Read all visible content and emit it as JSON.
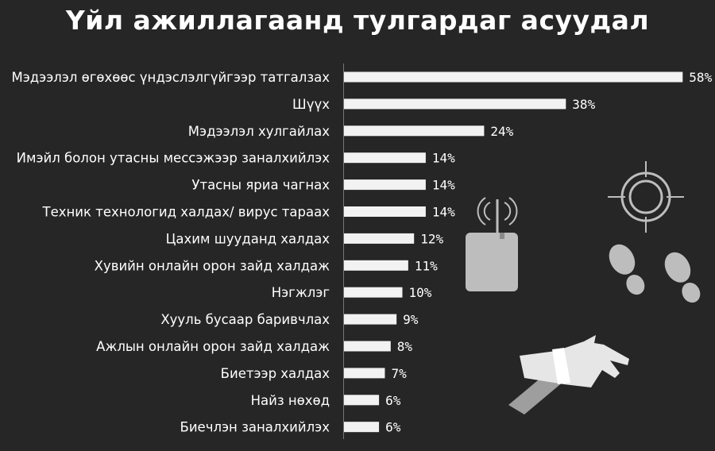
{
  "title": "Үйл ажиллагаанд тулгардаг асуудал",
  "chart_data": {
    "type": "bar",
    "orientation": "horizontal",
    "title": "Үйл ажиллагаанд тулгардаг асуудал",
    "categories": [
      "Мэдээлэл өгөхөөс үндэслэлгүйгээр татгалзах",
      "Шүүх",
      "Мэдээлэл хулгайлах",
      "Имэйл болон утасны мессэжээр заналхийлэх",
      "Утасны яриа чагнах",
      "Техник технологид халдах/ вирус тараах",
      "Цахим шууданд халдах",
      "Хувийн онлайн орон зайд халдаж",
      "Нэгжлэг",
      "Хууль бусаар баривчлах",
      "Ажлын онлайн орон зайд халдаж",
      "Биетээр халдах",
      "Найз нөхөд",
      "Биечлэн заналхийлэх"
    ],
    "values": [
      58,
      38,
      24,
      14,
      14,
      14,
      12,
      11,
      10,
      9,
      8,
      7,
      6,
      6
    ],
    "value_labels": [
      "58%",
      "38%",
      "24%",
      "14%",
      "14%",
      "14%",
      "12%",
      "11%",
      "10%",
      "9%",
      "8%",
      "7%",
      "6%",
      "6%"
    ],
    "unit": "%",
    "bar_color": "#f2f2f2",
    "background_color": "#262626",
    "grid": false,
    "legend": "none"
  },
  "decorations": {
    "icons": [
      "crosshair-icon",
      "footprints-icon",
      "wiretap-device-icon",
      "handcuffed-hands-icon"
    ],
    "icon_color": "#bdbdbd"
  }
}
